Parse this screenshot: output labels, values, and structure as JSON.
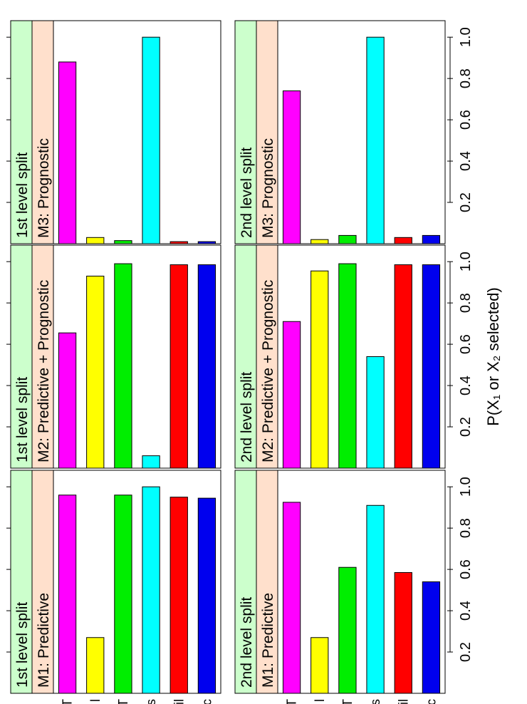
{
  "figure": {
    "common_xlabel": "P(X₁ or X₂ selected)",
    "bar_colors": [
      "#ff00ff",
      "#ffff00",
      "#00ee00",
      "#00ffff",
      "#ff0000",
      "#0000ee"
    ],
    "strip_colors": {
      "level": "#ccffcc",
      "model": "#ffe0cc"
    },
    "y_tick_labels_visible": [
      "T",
      "l",
      "T",
      "s",
      "il",
      "c"
    ]
  },
  "chart_data": [
    {
      "type": "bar",
      "orientation": "horizontal",
      "strip_level": "1st level split",
      "strip_model": "M1: Predictive",
      "categories": [
        "T",
        "l",
        "T",
        "s",
        "il",
        "c"
      ],
      "values": [
        0.96,
        0.27,
        0.96,
        1.0,
        0.95,
        0.945
      ],
      "xlim": [
        0,
        1.08
      ],
      "xticks": [
        "0.2",
        "0.4",
        "0.6",
        "0.8",
        "1.0"
      ]
    },
    {
      "type": "bar",
      "orientation": "horizontal",
      "strip_level": "1st level split",
      "strip_model": "M2: Predictive + Prognostic",
      "categories": [
        "T",
        "l",
        "T",
        "s",
        "il",
        "c"
      ],
      "values": [
        0.655,
        0.93,
        0.99,
        0.06,
        0.985,
        0.985
      ],
      "xlim": [
        0,
        1.08
      ],
      "xticks": [
        "0.2",
        "0.4",
        "0.6",
        "0.8",
        "1.0"
      ]
    },
    {
      "type": "bar",
      "orientation": "horizontal",
      "strip_level": "1st level split",
      "strip_model": "M3: Prognostic",
      "categories": [
        "T",
        "l",
        "T",
        "s",
        "il",
        "c"
      ],
      "values": [
        0.88,
        0.03,
        0.015,
        1.0,
        0.01,
        0.01
      ],
      "xlim": [
        0,
        1.08
      ],
      "xticks": [
        "0.2",
        "0.4",
        "0.6",
        "0.8",
        "1.0"
      ]
    },
    {
      "type": "bar",
      "orientation": "horizontal",
      "strip_level": "2nd level split",
      "strip_model": "M1: Predictive",
      "categories": [
        "T",
        "l",
        "T",
        "s",
        "il",
        "c"
      ],
      "values": [
        0.925,
        0.27,
        0.61,
        0.91,
        0.585,
        0.54
      ],
      "xlim": [
        0,
        1.08
      ],
      "xticks": [
        "0.2",
        "0.4",
        "0.6",
        "0.8",
        "1.0"
      ]
    },
    {
      "type": "bar",
      "orientation": "horizontal",
      "strip_level": "2nd level split",
      "strip_model": "M2: Predictive + Prognostic",
      "categories": [
        "T",
        "l",
        "T",
        "s",
        "il",
        "c"
      ],
      "values": [
        0.71,
        0.955,
        0.99,
        0.54,
        0.985,
        0.985
      ],
      "xlim": [
        0,
        1.08
      ],
      "xticks": [
        "0.2",
        "0.4",
        "0.6",
        "0.8",
        "1.0"
      ]
    },
    {
      "type": "bar",
      "orientation": "horizontal",
      "strip_level": "2nd level split",
      "strip_model": "M3: Prognostic",
      "categories": [
        "T",
        "l",
        "T",
        "s",
        "il",
        "c"
      ],
      "values": [
        0.74,
        0.02,
        0.04,
        1.0,
        0.03,
        0.04
      ],
      "xlim": [
        0,
        1.08
      ],
      "xticks": [
        "0.2",
        "0.4",
        "0.6",
        "0.8",
        "1.0"
      ]
    }
  ]
}
